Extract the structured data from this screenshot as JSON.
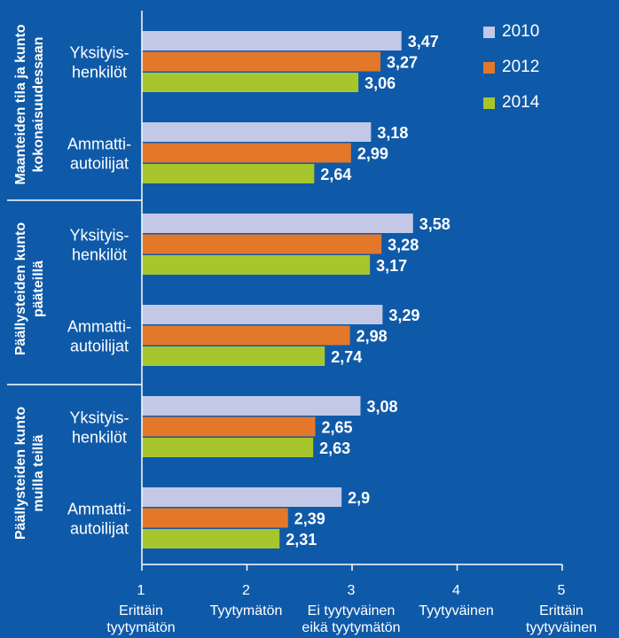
{
  "colors": {
    "background": "#0f5aa8",
    "series_2010": "#c3c8e6",
    "series_2012": "#e3782a",
    "series_2014": "#a7c62e",
    "axis": "#ffffff"
  },
  "chart_data": {
    "type": "bar",
    "orientation": "horizontal",
    "xlim": [
      1,
      5
    ],
    "x_ticks": [
      {
        "value": 1,
        "number": "1",
        "label": [
          "Erittäin",
          "tyytymätön"
        ]
      },
      {
        "value": 2,
        "number": "2",
        "label": [
          "Tyytymätön"
        ]
      },
      {
        "value": 3,
        "number": "3",
        "label": [
          "Ei tyytyväinen",
          "eikä tyytymätön"
        ]
      },
      {
        "value": 4,
        "number": "4",
        "label": [
          "Tyytyväinen"
        ]
      },
      {
        "value": 5,
        "number": "5",
        "label": [
          "Erittäin",
          "tyytyväinen"
        ]
      }
    ],
    "series": [
      {
        "name": "2010",
        "color": "#c3c8e6"
      },
      {
        "name": "2012",
        "color": "#e3782a"
      },
      {
        "name": "2014",
        "color": "#a7c62e"
      }
    ],
    "groups": [
      {
        "title": [
          "Maanteiden tila ja kunto",
          "kokonaisuudessaan"
        ],
        "categories": [
          {
            "label": [
              "Yksityis-",
              "henkilöt"
            ],
            "values": [
              3.47,
              3.27,
              3.06
            ],
            "value_labels": [
              "3,47",
              "3,27",
              "3,06"
            ]
          },
          {
            "label": [
              "Ammatti-",
              "autoilijat"
            ],
            "values": [
              3.18,
              2.99,
              2.64
            ],
            "value_labels": [
              "3,18",
              "2,99",
              "2,64"
            ]
          }
        ]
      },
      {
        "title": [
          "Päällysteiden kunto",
          "pääteillä"
        ],
        "categories": [
          {
            "label": [
              "Yksityis-",
              "henkilöt"
            ],
            "values": [
              3.58,
              3.28,
              3.17
            ],
            "value_labels": [
              "3,58",
              "3,28",
              "3,17"
            ]
          },
          {
            "label": [
              "Ammatti-",
              "autoilijat"
            ],
            "values": [
              3.29,
              2.98,
              2.74
            ],
            "value_labels": [
              "3,29",
              "2,98",
              "2,74"
            ]
          }
        ]
      },
      {
        "title": [
          "Päällysteiden kunto",
          "muilla teillä"
        ],
        "categories": [
          {
            "label": [
              "Yksityis-",
              "henkilöt"
            ],
            "values": [
              3.08,
              2.65,
              2.63
            ],
            "value_labels": [
              "3,08",
              "2,65",
              "2,63"
            ]
          },
          {
            "label": [
              "Ammatti-",
              "autoilijat"
            ],
            "values": [
              2.9,
              2.39,
              2.31
            ],
            "value_labels": [
              "2,9",
              "2,39",
              "2,31"
            ]
          }
        ]
      }
    ],
    "grid": false,
    "legend_position": "top-right"
  }
}
